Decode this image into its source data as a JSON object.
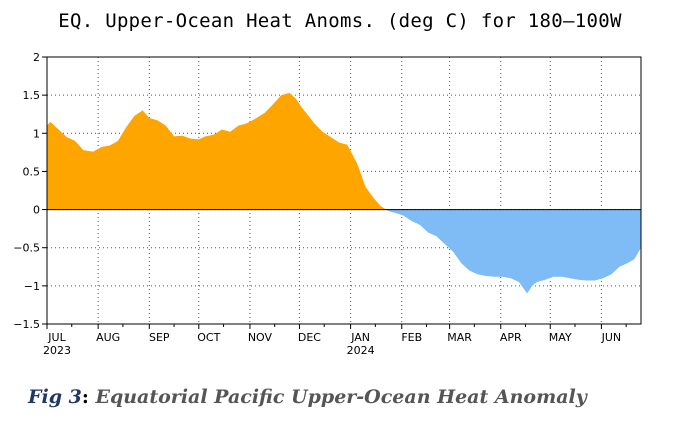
{
  "chart_data": {
    "type": "area",
    "title": "EQ. Upper-Ocean Heat Anoms. (deg C) for 180–100W",
    "xlabel": "",
    "ylabel": "",
    "ylim": [
      -1.5,
      2
    ],
    "yticks": [
      "2",
      "1.5",
      "1",
      "0.5",
      "0",
      "−0.5",
      "−1",
      "−1.5"
    ],
    "ytick_values": [
      2,
      1.5,
      1,
      0.5,
      0,
      -0.5,
      -1,
      -1.5
    ],
    "xlim": [
      "2023-07-01",
      "2024-06-25"
    ],
    "month_ticks": [
      {
        "label": "JUL",
        "sub": "2023",
        "date": "2023-07-01"
      },
      {
        "label": "AUG",
        "sub": "",
        "date": "2023-08-01"
      },
      {
        "label": "SEP",
        "sub": "",
        "date": "2023-09-01"
      },
      {
        "label": "OCT",
        "sub": "",
        "date": "2023-10-01"
      },
      {
        "label": "NOV",
        "sub": "",
        "date": "2023-11-01"
      },
      {
        "label": "DEC",
        "sub": "",
        "date": "2023-12-01"
      },
      {
        "label": "JAN",
        "sub": "2024",
        "date": "2024-01-01"
      },
      {
        "label": "FEB",
        "sub": "",
        "date": "2024-02-01"
      },
      {
        "label": "MAR",
        "sub": "",
        "date": "2024-03-01"
      },
      {
        "label": "APR",
        "sub": "",
        "date": "2024-04-01"
      },
      {
        "label": "MAY",
        "sub": "",
        "date": "2024-05-01"
      },
      {
        "label": "JUN",
        "sub": "",
        "date": "2024-06-01"
      }
    ],
    "grid": true,
    "positive_color": "#ffa500",
    "negative_color": "#7fbbf5",
    "series": [
      {
        "x": [
          "2023-07-01",
          "2023-07-03",
          "2023-07-08",
          "2023-07-13",
          "2023-07-18",
          "2023-07-23",
          "2023-07-29",
          "2023-08-03",
          "2023-08-08",
          "2023-08-13",
          "2023-08-18",
          "2023-08-23",
          "2023-08-28",
          "2023-09-01",
          "2023-09-06",
          "2023-09-11",
          "2023-09-16",
          "2023-09-21",
          "2023-09-26",
          "2023-10-01",
          "2023-10-05",
          "2023-10-10",
          "2023-10-15",
          "2023-10-20",
          "2023-10-25",
          "2023-10-30",
          "2023-11-05",
          "2023-11-10",
          "2023-11-15",
          "2023-11-20",
          "2023-11-25",
          "2023-11-29",
          "2023-12-02",
          "2023-12-05",
          "2023-12-10",
          "2023-12-15",
          "2023-12-20",
          "2023-12-25",
          "2023-12-30",
          "2024-01-05",
          "2024-01-10",
          "2024-01-15",
          "2024-01-19",
          "2024-01-24",
          "2024-01-29",
          "2024-02-02",
          "2024-02-07",
          "2024-02-12",
          "2024-02-17",
          "2024-02-22",
          "2024-02-27",
          "2024-03-03",
          "2024-03-08",
          "2024-03-13",
          "2024-03-18",
          "2024-03-23",
          "2024-03-28",
          "2024-04-02",
          "2024-04-07",
          "2024-04-12",
          "2024-04-17",
          "2024-04-20",
          "2024-04-23",
          "2024-04-28",
          "2024-05-03",
          "2024-05-08",
          "2024-05-13",
          "2024-05-18",
          "2024-05-23",
          "2024-05-28",
          "2024-06-02",
          "2024-06-07",
          "2024-06-12",
          "2024-06-17",
          "2024-06-21",
          "2024-06-25"
        ],
        "values": [
          1.1,
          1.15,
          1.05,
          0.95,
          0.9,
          0.78,
          0.76,
          0.82,
          0.84,
          0.9,
          1.08,
          1.23,
          1.3,
          1.2,
          1.17,
          1.1,
          0.96,
          0.97,
          0.93,
          0.92,
          0.96,
          0.98,
          1.05,
          1.02,
          1.1,
          1.13,
          1.2,
          1.27,
          1.38,
          1.5,
          1.53,
          1.45,
          1.35,
          1.27,
          1.13,
          1.02,
          0.95,
          0.88,
          0.85,
          0.6,
          0.3,
          0.15,
          0.05,
          -0.02,
          -0.05,
          -0.08,
          -0.15,
          -0.2,
          -0.3,
          -0.35,
          -0.45,
          -0.55,
          -0.7,
          -0.8,
          -0.85,
          -0.87,
          -0.88,
          -0.88,
          -0.9,
          -0.95,
          -1.1,
          -1.0,
          -0.95,
          -0.92,
          -0.88,
          -0.88,
          -0.9,
          -0.92,
          -0.93,
          -0.93,
          -0.9,
          -0.85,
          -0.75,
          -0.7,
          -0.65,
          -0.5
        ]
      }
    ]
  },
  "caption": {
    "fig_label": "Fig 3",
    "separator": ":",
    "text": "Equatorial Pacific Upper-Ocean Heat Anomaly"
  }
}
